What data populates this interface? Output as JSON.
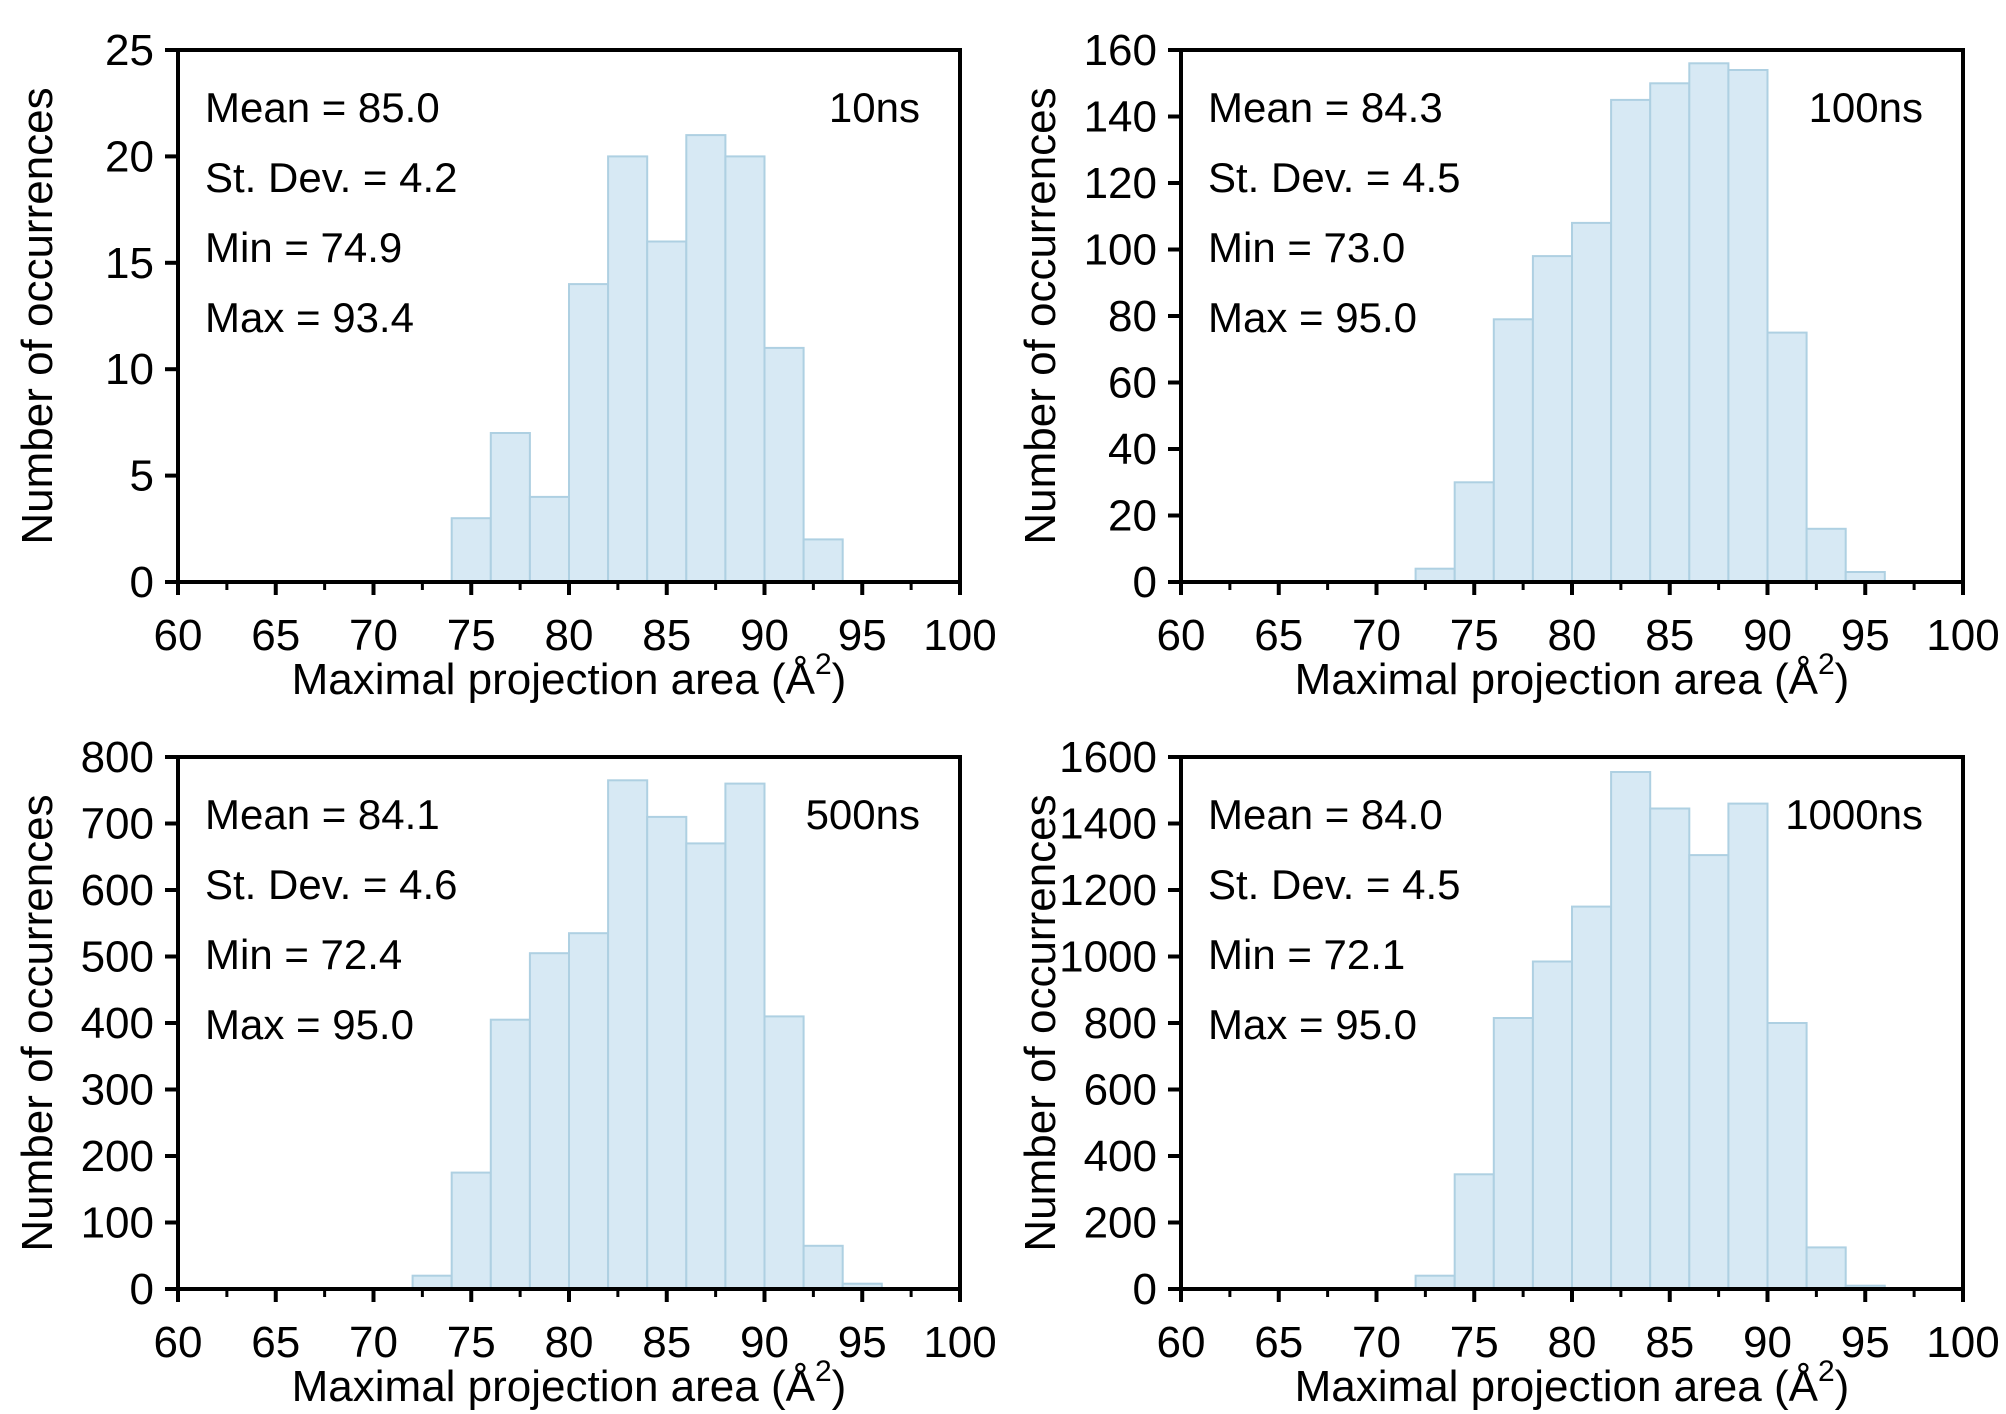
{
  "colors": {
    "background": "#ffffff",
    "bar_fill": "#d7e9f4",
    "bar_stroke": "#aed0e2",
    "axis": "#000000",
    "text": "#000000"
  },
  "chart_data": [
    {
      "type": "bar",
      "title": "10ns",
      "xlabel": "Maximal projection area (Å2)",
      "xlabel_parts": {
        "prefix": "Maximal projection area (Å",
        "sup": "2",
        "suffix": ")"
      },
      "ylabel": "Number of occurrences",
      "xlim": [
        60,
        100
      ],
      "ylim": [
        0,
        25
      ],
      "xticks": [
        60,
        65,
        70,
        75,
        80,
        85,
        90,
        95,
        100
      ],
      "xminorticks": [
        62.5,
        67.5,
        72.5,
        77.5,
        82.5,
        87.5,
        92.5,
        97.5
      ],
      "yticks": [
        0,
        5,
        10,
        15,
        20,
        25
      ],
      "grid": false,
      "bin_start": 74,
      "bin_width": 2,
      "counts": [
        3,
        7,
        4,
        14,
        20,
        16,
        21,
        20,
        11,
        2
      ],
      "annotations": [
        "Mean = 85.0",
        "St. Dev. = 4.2",
        "Min = 74.9",
        "Max = 93.4"
      ]
    },
    {
      "type": "bar",
      "title": "100ns",
      "xlabel": "Maximal projection area (Å2)",
      "xlabel_parts": {
        "prefix": "Maximal projection area (Å",
        "sup": "2",
        "suffix": ")"
      },
      "ylabel": "Number of occurrences",
      "xlim": [
        60,
        100
      ],
      "ylim": [
        0,
        160
      ],
      "xticks": [
        60,
        65,
        70,
        75,
        80,
        85,
        90,
        95,
        100
      ],
      "xminorticks": [
        62.5,
        67.5,
        72.5,
        77.5,
        82.5,
        87.5,
        92.5,
        97.5
      ],
      "yticks": [
        0,
        20,
        40,
        60,
        80,
        100,
        120,
        140,
        160
      ],
      "grid": false,
      "bin_start": 72,
      "bin_width": 2,
      "counts": [
        4,
        30,
        79,
        98,
        108,
        145,
        150,
        156,
        154,
        75,
        16,
        3
      ],
      "annotations": [
        "Mean = 84.3",
        "St. Dev. = 4.5",
        "Min = 73.0",
        "Max = 95.0"
      ]
    },
    {
      "type": "bar",
      "title": "500ns",
      "xlabel": "Maximal projection area (Å2)",
      "xlabel_parts": {
        "prefix": "Maximal projection area (Å",
        "sup": "2",
        "suffix": ")"
      },
      "ylabel": "Number of occurrences",
      "xlim": [
        60,
        100
      ],
      "ylim": [
        0,
        800
      ],
      "xticks": [
        60,
        65,
        70,
        75,
        80,
        85,
        90,
        95,
        100
      ],
      "xminorticks": [
        62.5,
        67.5,
        72.5,
        77.5,
        82.5,
        87.5,
        92.5,
        97.5
      ],
      "yticks": [
        0,
        100,
        200,
        300,
        400,
        500,
        600,
        700,
        800
      ],
      "grid": false,
      "bin_start": 72,
      "bin_width": 2,
      "counts": [
        20,
        175,
        405,
        505,
        535,
        765,
        710,
        670,
        760,
        410,
        65,
        8
      ],
      "annotations": [
        "Mean = 84.1",
        "St. Dev. = 4.6",
        "Min = 72.4",
        "Max = 95.0"
      ]
    },
    {
      "type": "bar",
      "title": "1000ns",
      "xlabel": "Maximal projection area (Å2)",
      "xlabel_parts": {
        "prefix": "Maximal projection area (Å",
        "sup": "2",
        "suffix": ")"
      },
      "ylabel": "Number of occurrences",
      "xlim": [
        60,
        100
      ],
      "ylim": [
        0,
        1600
      ],
      "xticks": [
        60,
        65,
        70,
        75,
        80,
        85,
        90,
        95,
        100
      ],
      "xminorticks": [
        62.5,
        67.5,
        72.5,
        77.5,
        82.5,
        87.5,
        92.5,
        97.5
      ],
      "yticks": [
        0,
        200,
        400,
        600,
        800,
        1000,
        1200,
        1400,
        1600
      ],
      "grid": false,
      "bin_start": 72,
      "bin_width": 2,
      "counts": [
        40,
        345,
        815,
        985,
        1150,
        1555,
        1445,
        1305,
        1460,
        800,
        125,
        10
      ],
      "annotations": [
        "Mean = 84.0",
        "St. Dev. = 4.5",
        "Min = 72.1",
        "Max = 95.0"
      ]
    }
  ]
}
